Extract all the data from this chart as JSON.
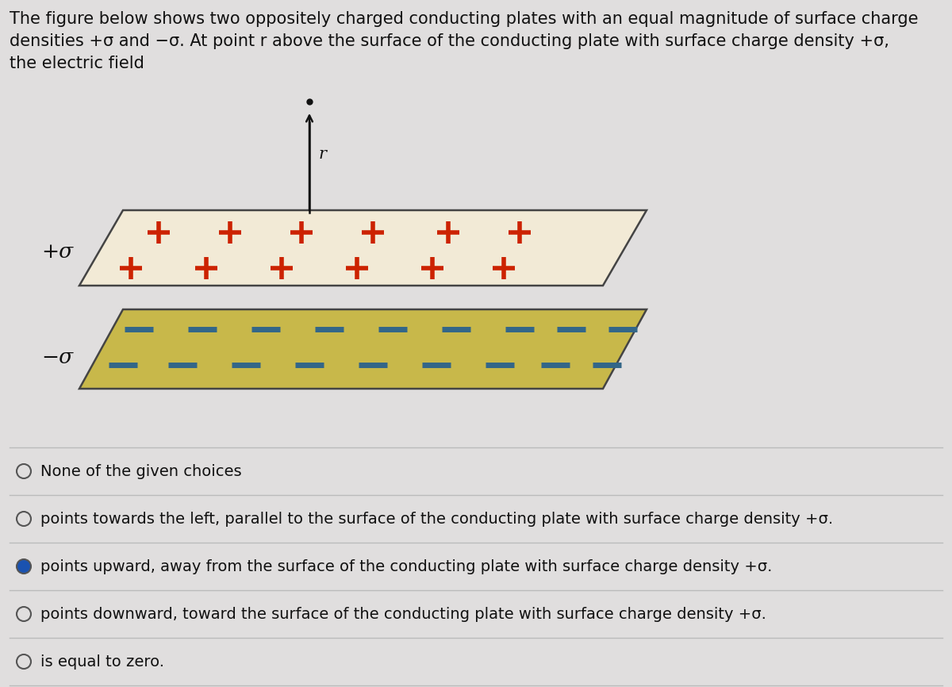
{
  "bg_color": "#e0dede",
  "title_line1": "The figure below shows two oppositely charged conducting plates with an equal magnitude of surface charge",
  "title_line2": "densities +σ and −σ. At point r above the surface of the conducting plate with surface charge density +σ,",
  "title_line3": "the electric field",
  "top_plate_color": "#f2ead6",
  "top_plate_border": "#444444",
  "bottom_plate_color": "#c8b84a",
  "bottom_plate_border": "#444444",
  "plus_color": "#cc2200",
  "minus_color": "#336688",
  "arrow_color": "#111111",
  "dot_color": "#111111",
  "plus_sigma_label": "+σ",
  "minus_sigma_label": "−σ",
  "r_label": "r",
  "options": [
    {
      "text": "None of the given choices",
      "selected": false
    },
    {
      "text": "points towards the left, parallel to the surface of the conducting plate with surface charge density +σ.",
      "selected": false
    },
    {
      "text": "points upward, away from the surface of the conducting plate with surface charge density +σ.",
      "selected": true
    },
    {
      "text": "points downward, toward the surface of the conducting plate with surface charge density +σ.",
      "selected": false
    },
    {
      "text": "is equal to zero.",
      "selected": false
    }
  ],
  "option_circle_color": "#555555",
  "selected_fill_color": "#1a52b0",
  "divider_color": "#bbbbbb",
  "text_color": "#111111",
  "title_fontsize": 15.0,
  "option_fontsize": 14.0,
  "sigma_fontsize": 19,
  "r_fontsize": 15
}
